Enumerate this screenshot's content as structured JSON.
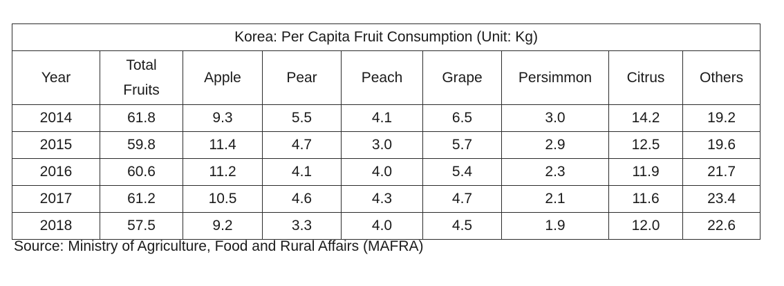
{
  "table": {
    "title": "Korea: Per Capita Fruit Consumption (Unit: Kg)",
    "headers": {
      "year": "Year",
      "total_line1": "Total",
      "total_line2": "Fruits",
      "apple": "Apple",
      "pear": "Pear",
      "peach": "Peach",
      "grape": "Grape",
      "persimmon": "Persimmon",
      "citrus": "Citrus",
      "others": "Others"
    },
    "rows": [
      [
        "2014",
        "61.8",
        "9.3",
        "5.5",
        "4.1",
        "6.5",
        "3.0",
        "14.2",
        "19.2"
      ],
      [
        "2015",
        "59.8",
        "11.4",
        "4.7",
        "3.0",
        "5.7",
        "2.9",
        "12.5",
        "19.6"
      ],
      [
        "2016",
        "60.6",
        "11.2",
        "4.1",
        "4.0",
        "5.4",
        "2.3",
        "11.9",
        "21.7"
      ],
      [
        "2017",
        "61.2",
        "10.5",
        "4.6",
        "4.3",
        "4.7",
        "2.1",
        "11.6",
        "23.4"
      ],
      [
        "2018",
        "57.5",
        "9.2",
        "3.3",
        "4.0",
        "4.5",
        "1.9",
        "12.0",
        "22.6"
      ]
    ]
  },
  "source": "Source: Ministry of Agriculture, Food and Rural Affairs (MAFRA)"
}
